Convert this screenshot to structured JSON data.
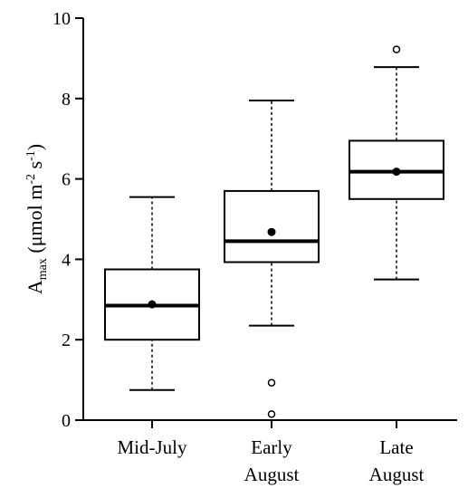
{
  "chart_data": {
    "type": "box",
    "title": "",
    "xlabel": "",
    "ylabel": {
      "main": "A",
      "sub": "max",
      "unit_prefix": " (μmol m",
      "sup1": "-2",
      "unit_mid": " s",
      "sup2": "-1",
      "unit_suffix": ")"
    },
    "ylim": [
      0,
      10
    ],
    "yticks": [
      0,
      2,
      4,
      6,
      8,
      10
    ],
    "grid": false,
    "categories": [
      {
        "lines": [
          "Mid-July"
        ]
      },
      {
        "lines": [
          "Early",
          "August"
        ]
      },
      {
        "lines": [
          "Late",
          "August"
        ]
      }
    ],
    "boxes": [
      {
        "whisker_low": 0.75,
        "q1": 2.0,
        "median": 2.85,
        "q3": 3.75,
        "whisker_high": 5.55,
        "mean": 2.88,
        "outliers": []
      },
      {
        "whisker_low": 2.35,
        "q1": 3.93,
        "median": 4.45,
        "q3": 5.7,
        "whisker_high": 7.95,
        "mean": 4.68,
        "outliers": [
          0.93,
          0.15
        ]
      },
      {
        "whisker_low": 3.5,
        "q1": 5.5,
        "median": 6.18,
        "q3": 6.95,
        "whisker_high": 8.78,
        "mean": 6.18,
        "outliers": [
          9.22
        ]
      }
    ]
  }
}
